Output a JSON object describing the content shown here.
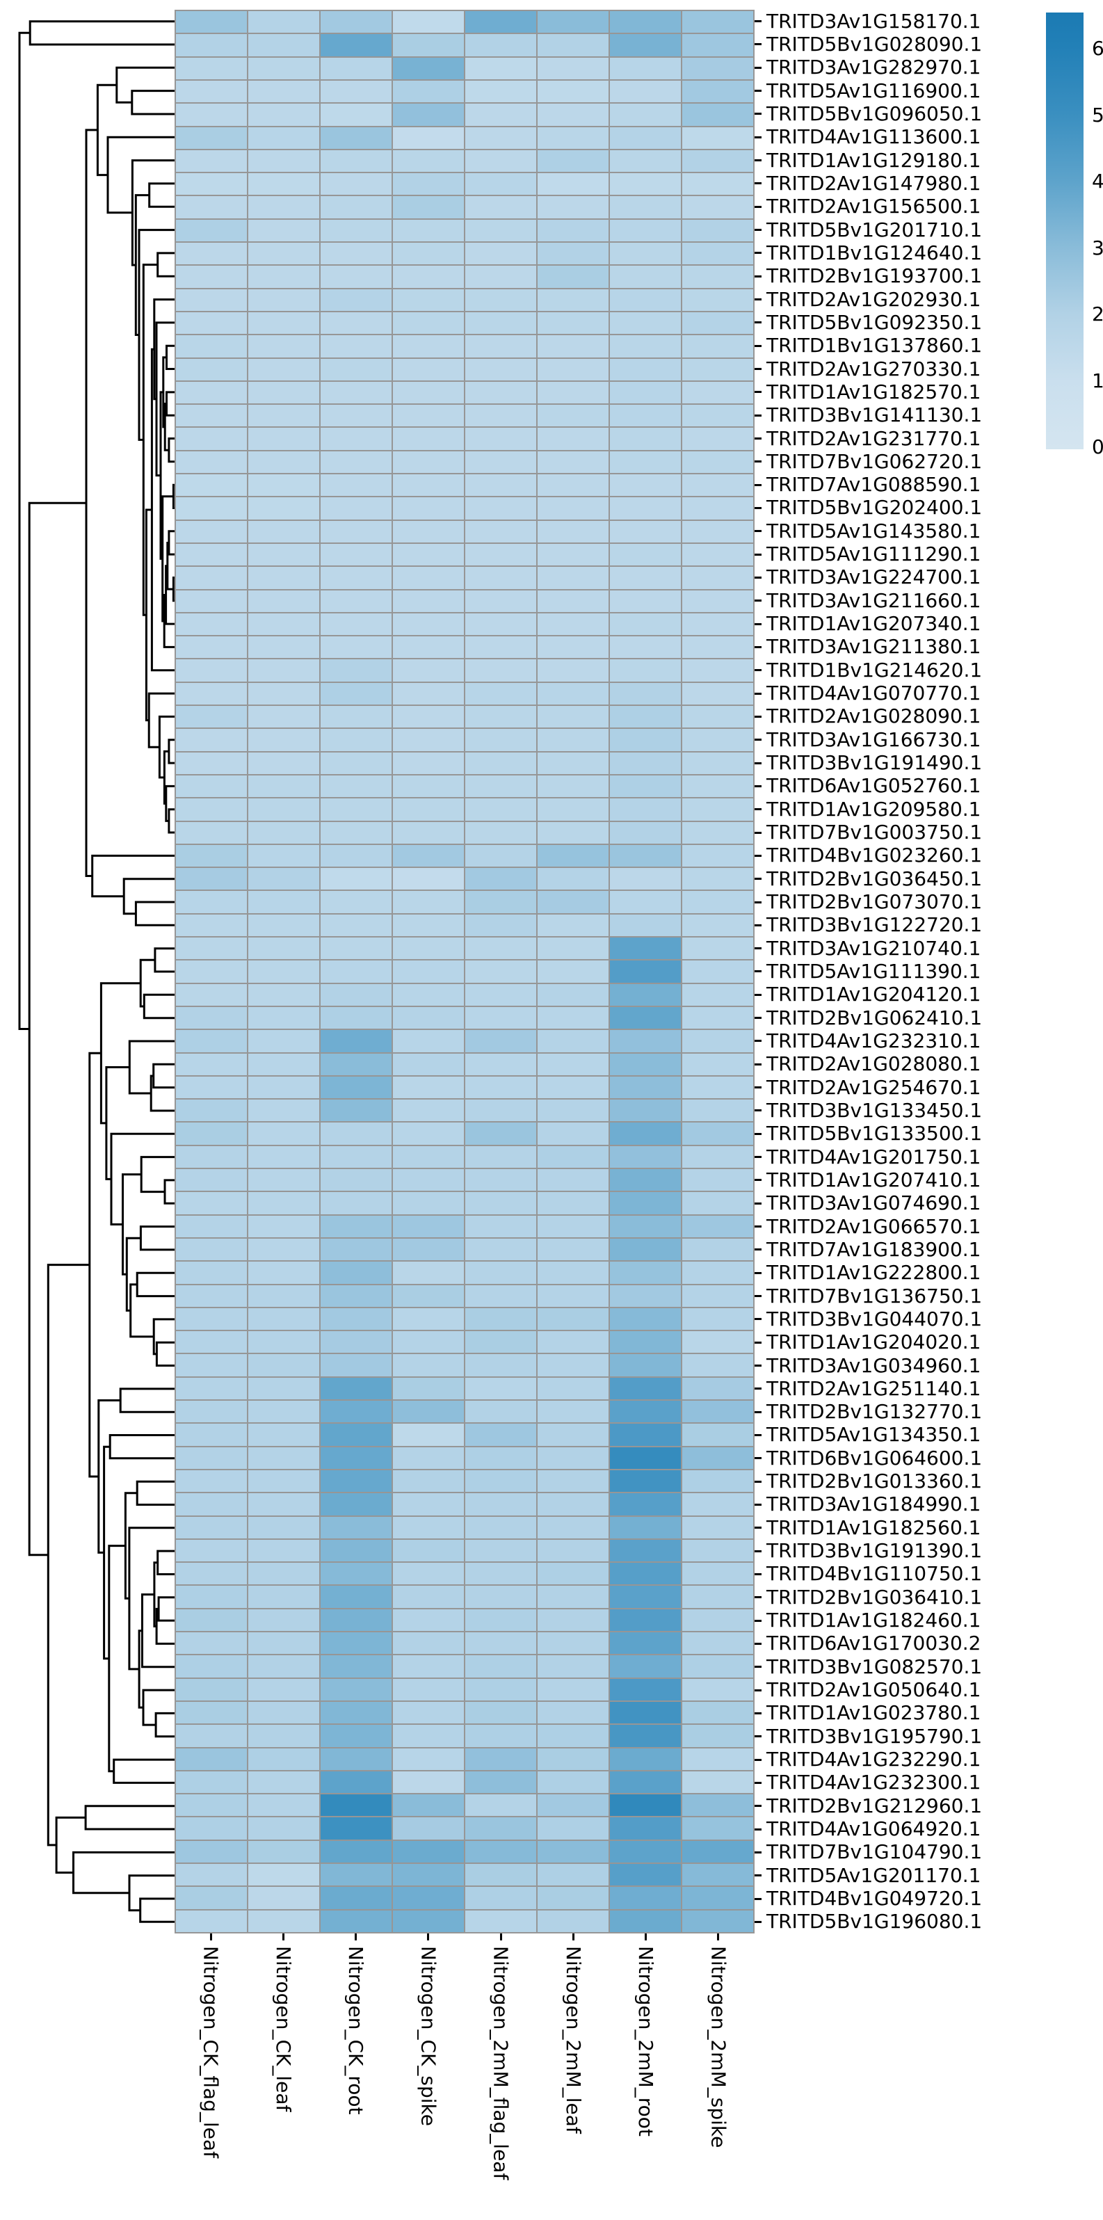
{
  "chart_data": {
    "type": "heatmap",
    "title": "",
    "xlabel": "",
    "ylabel": "",
    "grid": true,
    "grid_color": "#969696",
    "row_dendrogram": true,
    "legend_position": "right",
    "columns": [
      "Nitrogen_CK_flag_leaf",
      "Nitrogen_CK_leaf",
      "Nitrogen_CK_root",
      "Nitrogen_CK_spike",
      "Nitrogen_2mM_flag_leaf",
      "Nitrogen_2mM_leaf",
      "Nitrogen_2mM_root",
      "Nitrogen_2mM_spike"
    ],
    "rows": [
      "TRITD3Av1G158170.1",
      "TRITD5Bv1G028090.1",
      "TRITD3Av1G282970.1",
      "TRITD5Av1G116900.1",
      "TRITD5Bv1G096050.1",
      "TRITD4Av1G113600.1",
      "TRITD1Av1G129180.1",
      "TRITD2Av1G147980.1",
      "TRITD2Av1G156500.1",
      "TRITD5Bv1G201710.1",
      "TRITD1Bv1G124640.1",
      "TRITD2Bv1G193700.1",
      "TRITD2Av1G202930.1",
      "TRITD5Bv1G092350.1",
      "TRITD1Bv1G137860.1",
      "TRITD2Av1G270330.1",
      "TRITD1Av1G182570.1",
      "TRITD3Bv1G141130.1",
      "TRITD2Av1G231770.1",
      "TRITD7Bv1G062720.1",
      "TRITD7Av1G088590.1",
      "TRITD5Bv1G202400.1",
      "TRITD5Av1G143580.1",
      "TRITD5Av1G111290.1",
      "TRITD3Av1G224700.1",
      "TRITD3Av1G211660.1",
      "TRITD1Av1G207340.1",
      "TRITD3Av1G211380.1",
      "TRITD1Bv1G214620.1",
      "TRITD4Av1G070770.1",
      "TRITD2Av1G028090.1",
      "TRITD3Av1G166730.1",
      "TRITD3Bv1G191490.1",
      "TRITD6Av1G052760.1",
      "TRITD1Av1G209580.1",
      "TRITD7Bv1G003750.1",
      "TRITD4Bv1G023260.1",
      "TRITD2Bv1G036450.1",
      "TRITD2Bv1G073070.1",
      "TRITD3Bv1G122720.1",
      "TRITD3Av1G210740.1",
      "TRITD5Av1G111390.1",
      "TRITD1Av1G204120.1",
      "TRITD2Bv1G062410.1",
      "TRITD4Av1G232310.1",
      "TRITD2Av1G028080.1",
      "TRITD2Av1G254670.1",
      "TRITD3Bv1G133450.1",
      "TRITD5Bv1G133500.1",
      "TRITD4Av1G201750.1",
      "TRITD1Av1G207410.1",
      "TRITD3Av1G074690.1",
      "TRITD2Av1G066570.1",
      "TRITD7Av1G183900.1",
      "TRITD1Av1G222800.1",
      "TRITD7Bv1G136750.1",
      "TRITD3Bv1G044070.1",
      "TRITD1Av1G204020.1",
      "TRITD3Av1G034960.1",
      "TRITD2Av1G251140.1",
      "TRITD2Bv1G132770.1",
      "TRITD5Av1G134350.1",
      "TRITD6Bv1G064600.1",
      "TRITD2Bv1G013360.1",
      "TRITD3Av1G184990.1",
      "TRITD1Av1G182560.1",
      "TRITD3Bv1G191390.1",
      "TRITD4Bv1G110750.1",
      "TRITD2Bv1G036410.1",
      "TRITD1Av1G182460.1",
      "TRITD6Av1G170030.2",
      "TRITD3Bv1G082570.1",
      "TRITD2Av1G050640.1",
      "TRITD1Av1G023780.1",
      "TRITD3Bv1G195790.1",
      "TRITD4Av1G232290.1",
      "TRITD4Av1G232300.1",
      "TRITD2Bv1G212960.1",
      "TRITD4Av1G064920.1",
      "TRITD7Bv1G104790.1",
      "TRITD5Av1G201170.1",
      "TRITD4Bv1G049720.1",
      "TRITD5Bv1G196080.1"
    ],
    "values": [
      [
        2.6,
        1.9,
        2.4,
        1.4,
        3.6,
        3.0,
        3.2,
        2.6
      ],
      [
        2.0,
        1.9,
        3.8,
        2.2,
        2.0,
        2.0,
        3.4,
        2.5
      ],
      [
        1.7,
        1.7,
        1.8,
        3.4,
        1.5,
        1.6,
        1.8,
        2.3
      ],
      [
        1.6,
        1.6,
        1.6,
        2.1,
        1.5,
        1.5,
        1.6,
        2.4
      ],
      [
        1.6,
        1.6,
        1.5,
        2.8,
        1.6,
        1.6,
        1.7,
        2.6
      ],
      [
        2.2,
        1.8,
        2.6,
        1.3,
        1.6,
        1.7,
        1.9,
        1.5
      ],
      [
        1.6,
        1.6,
        1.7,
        1.7,
        1.6,
        2.1,
        1.7,
        2.0
      ],
      [
        1.5,
        1.5,
        1.6,
        2.0,
        1.8,
        1.4,
        1.5,
        1.5
      ],
      [
        1.6,
        1.6,
        1.7,
        2.2,
        1.6,
        1.6,
        1.7,
        1.6
      ],
      [
        2.1,
        1.6,
        1.7,
        1.7,
        1.7,
        1.9,
        1.8,
        2.0
      ],
      [
        1.6,
        1.6,
        1.6,
        1.7,
        1.6,
        2.0,
        1.7,
        1.9
      ],
      [
        1.6,
        1.6,
        1.6,
        1.6,
        1.6,
        2.2,
        1.7,
        1.7
      ],
      [
        1.6,
        1.6,
        1.9,
        1.7,
        1.7,
        1.7,
        1.8,
        1.7
      ],
      [
        1.6,
        1.6,
        1.6,
        1.7,
        1.7,
        1.7,
        1.7,
        1.9
      ],
      [
        1.7,
        1.6,
        1.6,
        1.6,
        1.6,
        1.6,
        1.7,
        1.7
      ],
      [
        1.7,
        1.6,
        1.7,
        1.6,
        1.6,
        1.6,
        1.8,
        1.7
      ],
      [
        1.6,
        1.6,
        1.6,
        1.6,
        1.6,
        1.6,
        1.8,
        1.6
      ],
      [
        1.6,
        1.6,
        1.6,
        1.6,
        1.6,
        1.7,
        1.8,
        1.7
      ],
      [
        1.6,
        1.6,
        1.6,
        1.6,
        1.6,
        1.6,
        1.7,
        1.6
      ],
      [
        1.6,
        1.6,
        1.6,
        1.6,
        1.6,
        1.6,
        1.7,
        1.7
      ],
      [
        1.5,
        1.5,
        1.6,
        1.6,
        1.6,
        1.6,
        1.6,
        1.6
      ],
      [
        1.5,
        1.5,
        1.6,
        1.6,
        1.6,
        1.6,
        1.6,
        1.6
      ],
      [
        1.6,
        1.6,
        1.6,
        1.6,
        1.6,
        1.6,
        1.6,
        1.6
      ],
      [
        1.6,
        1.6,
        1.6,
        1.6,
        1.6,
        1.6,
        1.7,
        1.6
      ],
      [
        1.6,
        1.6,
        1.6,
        1.6,
        1.6,
        1.6,
        1.6,
        1.6
      ],
      [
        1.6,
        1.6,
        1.6,
        1.6,
        1.6,
        1.6,
        1.6,
        1.6
      ],
      [
        1.6,
        1.6,
        1.6,
        1.6,
        1.6,
        1.6,
        1.7,
        1.6
      ],
      [
        1.6,
        1.6,
        1.6,
        1.6,
        1.6,
        1.6,
        1.6,
        1.6
      ],
      [
        1.6,
        1.6,
        2.0,
        1.6,
        1.6,
        1.6,
        1.7,
        1.6
      ],
      [
        1.6,
        1.6,
        2.1,
        1.6,
        1.8,
        1.8,
        2.0,
        1.6
      ],
      [
        1.9,
        1.6,
        1.7,
        1.6,
        1.7,
        1.7,
        2.1,
        1.7
      ],
      [
        1.6,
        1.6,
        1.7,
        1.6,
        1.7,
        1.7,
        2.1,
        1.7
      ],
      [
        1.6,
        1.6,
        1.7,
        1.6,
        1.7,
        1.7,
        2.0,
        1.7
      ],
      [
        1.7,
        1.7,
        1.7,
        1.7,
        1.7,
        1.7,
        2.1,
        1.7
      ],
      [
        1.7,
        1.7,
        1.7,
        1.7,
        1.7,
        1.7,
        1.9,
        1.7
      ],
      [
        1.7,
        1.7,
        1.7,
        1.7,
        1.7,
        1.7,
        2.0,
        1.7
      ],
      [
        2.2,
        1.8,
        1.9,
        2.4,
        1.9,
        2.7,
        2.6,
        1.8
      ],
      [
        2.3,
        2.0,
        1.4,
        1.3,
        2.4,
        1.9,
        1.6,
        1.7
      ],
      [
        1.8,
        1.8,
        1.7,
        1.7,
        2.2,
        2.3,
        1.8,
        1.8
      ],
      [
        1.7,
        1.7,
        1.7,
        1.7,
        2.0,
        1.7,
        2.0,
        1.7
      ],
      [
        1.7,
        1.7,
        1.7,
        1.7,
        1.7,
        1.7,
        4.0,
        1.7
      ],
      [
        1.7,
        1.7,
        1.8,
        1.8,
        1.7,
        1.7,
        4.3,
        1.8
      ],
      [
        1.7,
        1.7,
        2.0,
        1.8,
        1.8,
        1.9,
        3.5,
        1.8
      ],
      [
        2.0,
        1.8,
        2.1,
        1.9,
        1.8,
        1.8,
        3.9,
        1.8
      ],
      [
        2.1,
        1.8,
        3.6,
        1.8,
        2.4,
        1.9,
        2.8,
        1.9
      ],
      [
        1.8,
        1.8,
        3.0,
        1.9,
        1.8,
        1.8,
        3.0,
        1.8
      ],
      [
        1.8,
        1.8,
        3.3,
        1.7,
        1.8,
        1.8,
        2.9,
        1.8
      ],
      [
        2.1,
        1.8,
        3.0,
        1.8,
        1.9,
        1.9,
        2.9,
        1.9
      ],
      [
        2.2,
        1.8,
        1.9,
        1.8,
        2.6,
        1.9,
        3.6,
        2.4
      ],
      [
        1.9,
        1.8,
        1.9,
        1.9,
        1.9,
        2.1,
        2.8,
        1.9
      ],
      [
        1.9,
        1.8,
        2.0,
        1.9,
        1.9,
        1.9,
        3.4,
        1.9
      ],
      [
        1.8,
        1.8,
        1.9,
        1.9,
        1.9,
        1.9,
        3.3,
        1.9
      ],
      [
        1.9,
        1.8,
        2.6,
        2.5,
        1.9,
        1.9,
        3.0,
        2.5
      ],
      [
        1.9,
        1.8,
        2.5,
        2.4,
        1.9,
        1.9,
        3.3,
        2.0
      ],
      [
        1.9,
        1.8,
        2.9,
        1.7,
        1.9,
        1.9,
        2.7,
        1.9
      ],
      [
        1.9,
        1.9,
        2.6,
        2.2,
        1.9,
        1.9,
        2.4,
        1.9
      ],
      [
        1.9,
        1.9,
        2.4,
        1.8,
        2.2,
        2.2,
        3.1,
        1.9
      ],
      [
        1.9,
        1.9,
        2.3,
        1.9,
        2.2,
        1.9,
        3.2,
        1.7
      ],
      [
        1.9,
        2.0,
        2.4,
        1.9,
        2.0,
        1.9,
        3.2,
        1.9
      ],
      [
        1.9,
        1.9,
        3.9,
        2.2,
        1.8,
        1.9,
        4.3,
        2.3
      ],
      [
        2.0,
        1.9,
        3.6,
        2.9,
        2.0,
        1.9,
        4.1,
        2.8
      ],
      [
        2.0,
        1.9,
        3.9,
        1.5,
        2.5,
        2.0,
        4.5,
        2.2
      ],
      [
        2.0,
        1.9,
        3.8,
        1.9,
        2.1,
        2.0,
        5.2,
        2.9
      ],
      [
        1.9,
        1.9,
        3.8,
        2.0,
        2.1,
        2.0,
        4.8,
        2.1
      ],
      [
        2.0,
        1.9,
        3.7,
        1.9,
        2.0,
        2.0,
        4.2,
        1.9
      ],
      [
        2.0,
        2.0,
        3.0,
        1.9,
        2.0,
        2.0,
        3.5,
        1.9
      ],
      [
        1.9,
        1.9,
        3.2,
        2.1,
        2.0,
        2.0,
        4.1,
        2.0
      ],
      [
        2.0,
        2.0,
        3.1,
        1.9,
        2.0,
        2.1,
        4.2,
        2.0
      ],
      [
        2.1,
        2.0,
        3.5,
        2.0,
        2.0,
        2.0,
        4.1,
        2.0
      ],
      [
        2.2,
        2.0,
        3.4,
        1.9,
        2.1,
        2.0,
        4.3,
        2.0
      ],
      [
        2.0,
        2.0,
        3.3,
        2.0,
        2.0,
        2.0,
        4.0,
        2.0
      ],
      [
        2.1,
        2.0,
        3.2,
        1.9,
        2.1,
        2.0,
        3.6,
        2.1
      ],
      [
        2.2,
        1.9,
        3.0,
        1.9,
        2.1,
        1.9,
        4.5,
        1.8
      ],
      [
        2.2,
        2.0,
        3.2,
        1.9,
        2.2,
        2.0,
        4.8,
        2.2
      ],
      [
        2.0,
        2.0,
        3.3,
        1.9,
        2.1,
        2.1,
        4.6,
        2.2
      ],
      [
        2.6,
        2.1,
        3.2,
        1.8,
        2.8,
        2.2,
        3.7,
        1.8
      ],
      [
        2.1,
        1.9,
        4.0,
        1.6,
        2.9,
        2.1,
        4.1,
        1.7
      ],
      [
        2.1,
        1.9,
        5.3,
        3.0,
        1.9,
        2.4,
        5.4,
        2.9
      ],
      [
        2.1,
        2.0,
        4.9,
        2.3,
        2.6,
        2.1,
        4.3,
        2.7
      ],
      [
        2.5,
        2.2,
        3.9,
        3.7,
        3.1,
        3.0,
        4.0,
        3.8
      ],
      [
        1.9,
        1.5,
        3.2,
        3.3,
        2.2,
        2.1,
        4.2,
        3.1
      ],
      [
        2.2,
        1.6,
        3.7,
        3.6,
        2.1,
        2.2,
        3.6,
        3.3
      ],
      [
        1.8,
        1.7,
        3.5,
        3.5,
        1.8,
        2.0,
        3.7,
        3.2
      ]
    ],
    "colorbar": {
      "ticks": [
        "6",
        "5",
        "4",
        "3",
        "2",
        "1",
        "0"
      ],
      "tick_values": [
        6,
        5,
        4,
        3,
        2,
        1,
        0
      ],
      "vmin": 0,
      "vmax": 6.5,
      "colormap_stops": [
        [
          0,
          "#d4e5f0"
        ],
        [
          1,
          "#cadfee"
        ],
        [
          2,
          "#b2d2e6"
        ],
        [
          3,
          "#8abcd9"
        ],
        [
          4,
          "#5da3cb"
        ],
        [
          5,
          "#3a8fc0"
        ],
        [
          6,
          "#2280b7"
        ],
        [
          6.5,
          "#1b7ab3"
        ]
      ]
    },
    "dendrogram_color": "#000000"
  }
}
